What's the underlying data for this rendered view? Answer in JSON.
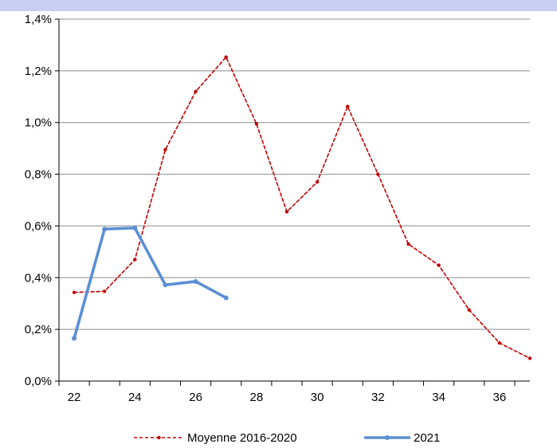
{
  "chart_data": {
    "type": "line",
    "title": "",
    "xlabel": "",
    "ylabel": "",
    "xlim": [
      21.5,
      37
    ],
    "ylim": [
      0,
      1.4
    ],
    "x_ticks": [
      22,
      24,
      26,
      28,
      30,
      32,
      34,
      36
    ],
    "x_tick_labels": [
      "22",
      "24",
      "26",
      "28",
      "30",
      "32",
      "34",
      "36"
    ],
    "y_ticks": [
      0,
      0.2,
      0.4,
      0.6,
      0.8,
      1.0,
      1.2,
      1.4
    ],
    "y_tick_labels": [
      "0,0%",
      "0,2%",
      "0,4%",
      "0,6%",
      "0,8%",
      "1,0%",
      "1,2%",
      "1,4%"
    ],
    "grid": "horizontal",
    "legend_position": "bottom",
    "series": [
      {
        "name": "Moyenne 2016-2020",
        "color": "#c00000",
        "style": "dashed",
        "x": [
          22,
          23,
          24,
          25,
          26,
          27,
          28,
          29,
          30,
          31,
          32,
          33,
          34,
          35,
          36,
          37
        ],
        "values": [
          0.343,
          0.347,
          0.47,
          0.895,
          1.12,
          1.253,
          0.995,
          0.655,
          0.77,
          1.062,
          0.8,
          0.53,
          0.448,
          0.275,
          0.147,
          0.088
        ]
      },
      {
        "name": "2021",
        "color": "#5b8fd4",
        "style": "solid",
        "x": [
          22,
          23,
          24,
          25,
          26,
          27
        ],
        "values": [
          0.165,
          0.588,
          0.592,
          0.372,
          0.385,
          0.322
        ]
      }
    ]
  }
}
